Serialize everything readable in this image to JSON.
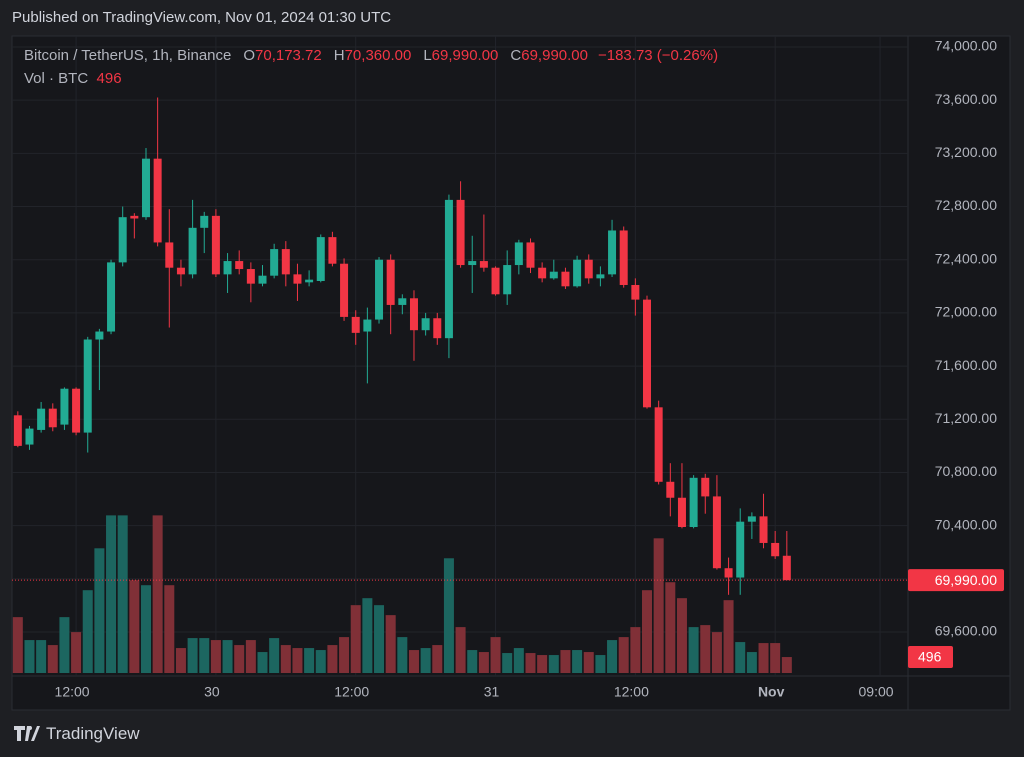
{
  "header": {
    "title": "Published on TradingView.com, Nov 01, 2024 01:30 UTC"
  },
  "chart_data": {
    "type": "candlestick",
    "symbol": "Bitcoin / TetherUS, 1h, Binance",
    "legend": [
      {
        "key": "O",
        "value": "70,173.72"
      },
      {
        "key": "H",
        "value": "70,360.00"
      },
      {
        "key": "L",
        "value": "69,990.00"
      },
      {
        "key": "C",
        "value": "69,990.00"
      }
    ],
    "change": "−183.73 (−0.26%)",
    "volume_label": "Vol · BTC",
    "open": [
      71230,
      71010,
      71120,
      71280,
      71160,
      71430,
      71100,
      71800,
      71860,
      72380,
      72730,
      72720,
      73160,
      72530,
      72340,
      72290,
      72640,
      72730,
      72290,
      72390,
      72330,
      72220,
      72280,
      72480,
      72290,
      72230,
      72240,
      72570,
      72370,
      71970,
      71860,
      71950,
      72400,
      72060,
      72110,
      71870,
      71960,
      71810,
      72850,
      72360,
      72390,
      72340,
      72140,
      72360,
      72530,
      72340,
      72260,
      72310,
      72200,
      72400,
      72260,
      72290,
      72620,
      72210,
      72100,
      71290,
      70730,
      70610,
      70390,
      70760,
      70620,
      70080,
      70010,
      70430,
      70470,
      70270,
      70173.72
    ],
    "high": [
      71260,
      71150,
      71330,
      71320,
      71440,
      71440,
      71820,
      71880,
      72400,
      72800,
      72750,
      73240,
      73620,
      72780,
      72400,
      72850,
      72760,
      72780,
      72450,
      72470,
      72380,
      72360,
      72520,
      72540,
      72370,
      72320,
      72590,
      72610,
      72410,
      72020,
      72040,
      72420,
      72440,
      72140,
      72170,
      72000,
      72000,
      72890,
      72990,
      72580,
      72740,
      72350,
      72470,
      72550,
      72560,
      72380,
      72400,
      72340,
      72430,
      72440,
      72350,
      72700,
      72650,
      72260,
      72130,
      71340,
      70870,
      70870,
      70780,
      70790,
      70780,
      70160,
      70530,
      70500,
      70640,
      70360,
      70360
    ],
    "low": [
      70990,
      70970,
      71100,
      71110,
      71120,
      71080,
      70950,
      71420,
      71840,
      72350,
      72560,
      72700,
      72500,
      71890,
      72200,
      72260,
      72450,
      72270,
      72150,
      72290,
      72080,
      72200,
      72260,
      72200,
      72090,
      72200,
      72230,
      72350,
      71940,
      71760,
      71470,
      71920,
      71840,
      71990,
      71640,
      71830,
      71760,
      71660,
      72340,
      72150,
      72310,
      72130,
      72060,
      72290,
      72300,
      72230,
      72250,
      72180,
      72190,
      72220,
      72200,
      72270,
      72190,
      71980,
      71280,
      70710,
      70470,
      70380,
      70380,
      70490,
      70070,
      69880,
      69880,
      70300,
      70230,
      70150,
      69990
    ],
    "close": [
      71000,
      71130,
      71280,
      71140,
      71430,
      71100,
      71800,
      71860,
      72380,
      72720,
      72710,
      73160,
      72530,
      72340,
      72290,
      72640,
      72730,
      72290,
      72390,
      72330,
      72220,
      72280,
      72480,
      72290,
      72220,
      72250,
      72570,
      72370,
      71970,
      71850,
      71950,
      72400,
      72060,
      72110,
      71870,
      71960,
      71810,
      72850,
      72360,
      72390,
      72340,
      72140,
      72360,
      72530,
      72340,
      72260,
      72310,
      72200,
      72400,
      72260,
      72290,
      72620,
      72210,
      72100,
      71290,
      70730,
      70610,
      70390,
      70760,
      70620,
      70080,
      70010,
      70430,
      70470,
      70270,
      70170,
      69990
    ],
    "volume": [
      1736,
      1023,
      1023,
      868,
      1736,
      1271,
      2573,
      3875,
      4898,
      4898,
      2883,
      2728,
      4898,
      2728,
      775,
      1085,
      1085,
      1023,
      1023,
      868,
      1023,
      651,
      1085,
      868,
      775,
      775,
      713,
      868,
      1116,
      2108,
      2325,
      2108,
      1798,
      1116,
      713,
      775,
      868,
      3565,
      1426,
      713,
      651,
      1116,
      620,
      775,
      620,
      558,
      558,
      713,
      713,
      651,
      558,
      1023,
      1116,
      1426,
      2573,
      4185,
      2821,
      2325,
      1426,
      1488,
      1271,
      2263,
      961,
      651,
      930,
      930,
      496
    ],
    "xlim": [
      -0.5,
      76.4
    ],
    "xticks": [
      {
        "value": 5,
        "label": "12:00"
      },
      {
        "value": 17,
        "label": "30"
      },
      {
        "value": 29,
        "label": "12:00"
      },
      {
        "value": 41,
        "label": "31"
      },
      {
        "value": 53,
        "label": "12:00"
      },
      {
        "value": 65,
        "label": "Nov"
      },
      {
        "value": 74,
        "label": "09:00"
      }
    ],
    "ylim": [
      69292,
      74075
    ],
    "yticks": [
      {
        "value": 69600,
        "label": "69,600.00"
      },
      {
        "value": 70000,
        "label": "70,000.00"
      },
      {
        "value": 70400,
        "label": "70,400.00"
      },
      {
        "value": 70800,
        "label": "70,800.00"
      },
      {
        "value": 71200,
        "label": "71,200.00"
      },
      {
        "value": 71600,
        "label": "71,600.00"
      },
      {
        "value": 72000,
        "label": "72,000.00"
      },
      {
        "value": 72400,
        "label": "72,400.00"
      },
      {
        "value": 72800,
        "label": "72,800.00"
      },
      {
        "value": 73200,
        "label": "73,200.00"
      },
      {
        "value": 73600,
        "label": "73,600.00"
      },
      {
        "value": 74000,
        "label": "74,000.00"
      }
    ],
    "volume_ylim": [
      0,
      5500
    ],
    "last_price": {
      "value": 69990,
      "label": "69,990.00"
    },
    "up_color": "#22ab94",
    "down_color": "#f23645",
    "volume_up_color": "#1c6660",
    "volume_down_color": "#803037",
    "grid": true
  },
  "footer": {
    "brand": "TradingView"
  }
}
